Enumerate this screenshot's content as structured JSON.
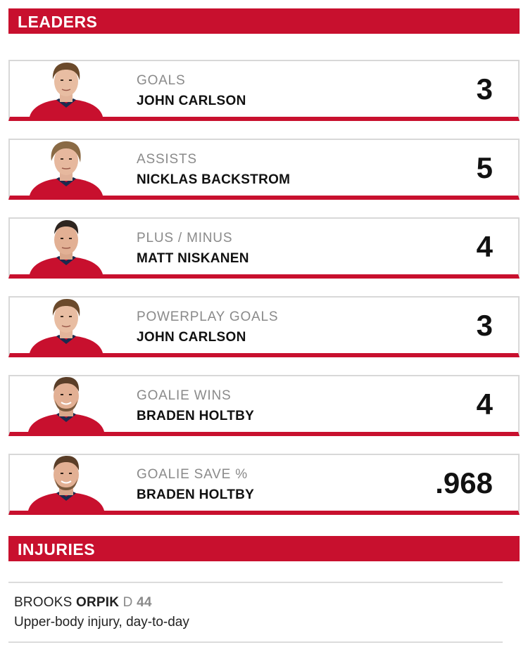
{
  "leaders": {
    "header": "LEADERS",
    "cards": [
      {
        "stat": "GOALS",
        "player": "JOHN CARLSON",
        "value": "3"
      },
      {
        "stat": "ASSISTS",
        "player": "NICKLAS BACKSTROM",
        "value": "5"
      },
      {
        "stat": "PLUS / MINUS",
        "player": "MATT NISKANEN",
        "value": "4"
      },
      {
        "stat": "POWERPLAY GOALS",
        "player": "JOHN CARLSON",
        "value": "3"
      },
      {
        "stat": "GOALIE WINS",
        "player": "BRADEN HOLTBY",
        "value": "4"
      },
      {
        "stat": "GOALIE SAVE %",
        "player": "BRADEN HOLTBY",
        "value": ".968"
      }
    ]
  },
  "injuries": {
    "header": "INJURIES",
    "items": [
      {
        "first_name": "BROOKS",
        "last_name": "ORPIK",
        "position": "D",
        "number": "44",
        "description": "Upper-body injury, day-to-day"
      }
    ]
  },
  "colors": {
    "accent": "#c8102e",
    "jersey_navy": "#1b2a4e",
    "border": "#d8d8d8",
    "muted_text": "#8a8a8a"
  },
  "icons": {
    "headshot": "player-headshot-photo"
  }
}
